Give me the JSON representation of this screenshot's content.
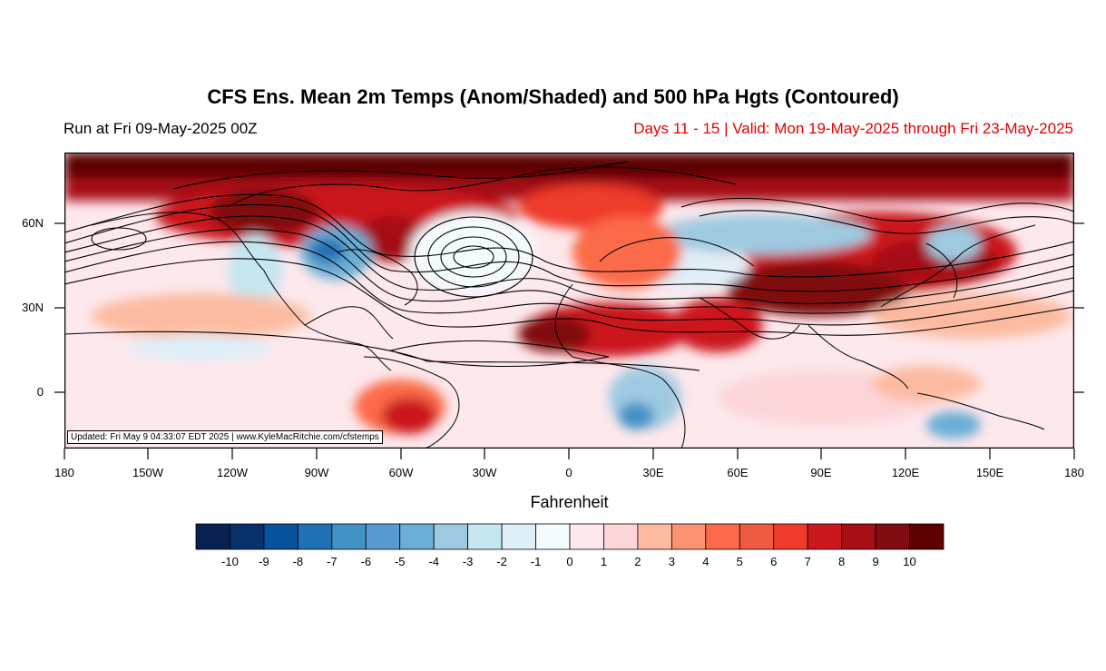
{
  "header": {
    "title": "CFS Ens. Mean 2m Temps (Anom/Shaded) and 500 hPa Hgts (Contoured)",
    "run": "Run at Fri 09-May-2025 00Z",
    "valid": "Days 11 - 15 | Valid: Mon 19-May-2025 through Fri 23-May-2025"
  },
  "map": {
    "projection": "cylindrical equidistant",
    "lon_range": [
      -180,
      180
    ],
    "lat_range": [
      -20,
      85
    ],
    "x_ticks": [
      "180",
      "150W",
      "120W",
      "90W",
      "60W",
      "30W",
      "0",
      "30E",
      "60E",
      "90E",
      "120E",
      "150E",
      "180"
    ],
    "y_ticks": [
      "60N",
      "30N",
      "0"
    ],
    "shaded_field": "2m temperature anomaly",
    "contour_field": "500 hPa heights",
    "contour_color": "#000000",
    "updated_note": "Updated: Fri May  9 04:33:07 EDT 2025 | www.KyleMacRitchie.com/cfstemps"
  },
  "colorbar": {
    "units_label": "Fahrenheit",
    "labels": [
      "-10",
      "-9",
      "-8",
      "-7",
      "-6",
      "-5",
      "-4",
      "-3",
      "-2",
      "-1",
      "0",
      "1",
      "2",
      "3",
      "4",
      "5",
      "6",
      "7",
      "8",
      "9",
      "10"
    ],
    "colors": [
      "#08214f",
      "#08306b",
      "#08519c",
      "#2171b5",
      "#4292c6",
      "#5a9ccf",
      "#6baed6",
      "#9ecae1",
      "#c6e6f0",
      "#deeff8",
      "#f4fbfe",
      "#fde8ec",
      "#fcd5d8",
      "#fcbba1",
      "#fc9272",
      "#fb6a4a",
      "#ef5a42",
      "#ef3b2c",
      "#cb181d",
      "#a50f15",
      "#800b10",
      "#5c0000"
    ]
  }
}
